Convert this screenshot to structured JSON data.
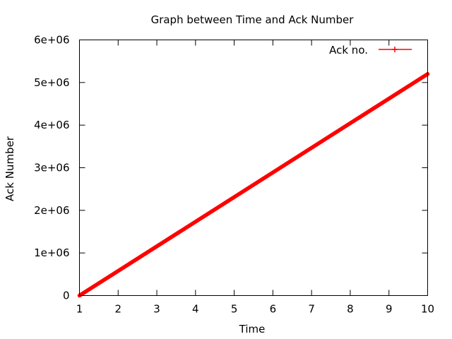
{
  "chart_data": {
    "type": "line",
    "title": "Graph between Time and Ack Number",
    "xlabel": "Time",
    "ylabel": "Ack Number",
    "xlim": [
      1,
      10
    ],
    "ylim": [
      0,
      6000000
    ],
    "x_ticks": [
      "1",
      "2",
      "3",
      "4",
      "5",
      "6",
      "7",
      "8",
      "9",
      "10"
    ],
    "y_ticks": [
      "0",
      "1e+06",
      "2e+06",
      "3e+06",
      "4e+06",
      "5e+06",
      "6e+06"
    ],
    "grid": false,
    "legend_position": "top-right",
    "series": [
      {
        "name": "Ack no.",
        "color": "#ff0000",
        "marker": "plus",
        "x": [
          1,
          10
        ],
        "y": [
          0,
          5200000
        ]
      }
    ]
  }
}
